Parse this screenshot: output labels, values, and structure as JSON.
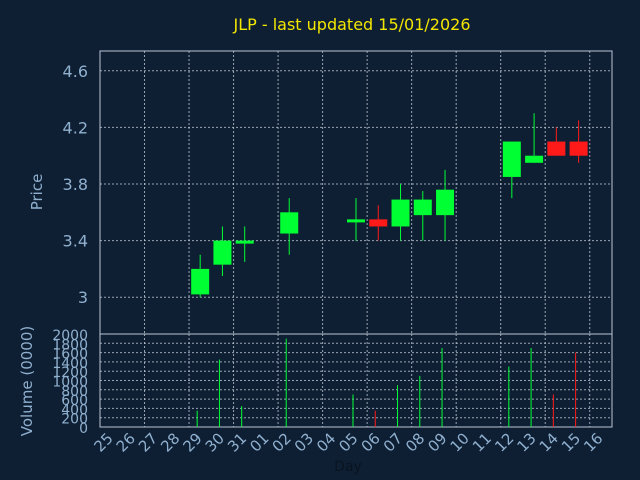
{
  "chart_data": {
    "type": "candlestick",
    "title": "JLP - last updated 15/01/2026",
    "xlabel": "Day",
    "price_panel": {
      "ylabel": "Price",
      "ylim": [
        2.74,
        4.74
      ],
      "yticks": [
        3,
        3.4,
        3.8,
        4.2,
        4.6
      ],
      "ytick_labels": [
        "3",
        "3.4",
        "3.8",
        "4.2",
        "4.6"
      ],
      "grid": true
    },
    "volume_panel": {
      "ylabel": "Volume (0000)",
      "ylim": [
        0,
        2000
      ],
      "yticks": [
        0,
        200,
        400,
        600,
        800,
        1000,
        1200,
        1400,
        1600,
        1800,
        2000
      ],
      "ytick_labels": [
        "0",
        "200",
        "400",
        "600",
        "800",
        "1000",
        "1200",
        "1400",
        "1600",
        "1800",
        "2000"
      ],
      "grid": true
    },
    "x_tick_labels": [
      "25",
      "26",
      "27",
      "28",
      "29",
      "30",
      "31",
      "01",
      "02",
      "03",
      "04",
      "05",
      "06",
      "07",
      "08",
      "09",
      "10",
      "11",
      "12",
      "13",
      "14",
      "15",
      "16"
    ],
    "candles": [
      {
        "day": "29",
        "open": 3.02,
        "high": 3.3,
        "low": 3.0,
        "close": 3.2,
        "volume": 350
      },
      {
        "day": "30",
        "open": 3.23,
        "high": 3.5,
        "low": 3.15,
        "close": 3.4,
        "volume": 1450
      },
      {
        "day": "31",
        "open": 3.39,
        "high": 3.5,
        "low": 3.25,
        "close": 3.4,
        "volume": 450
      },
      {
        "day": "02",
        "open": 3.45,
        "high": 3.7,
        "low": 3.3,
        "close": 3.6,
        "volume": 1900
      },
      {
        "day": "05",
        "open": 3.53,
        "high": 3.7,
        "low": 3.4,
        "close": 3.55,
        "volume": 700
      },
      {
        "day": "06",
        "open": 3.55,
        "high": 3.65,
        "low": 3.4,
        "close": 3.5,
        "volume": 350
      },
      {
        "day": "07",
        "open": 3.5,
        "high": 3.8,
        "low": 3.4,
        "close": 3.69,
        "volume": 900
      },
      {
        "day": "08",
        "open": 3.58,
        "high": 3.75,
        "low": 3.4,
        "close": 3.69,
        "volume": 1100
      },
      {
        "day": "09",
        "open": 3.58,
        "high": 3.9,
        "low": 3.4,
        "close": 3.76,
        "volume": 1700
      },
      {
        "day": "12",
        "open": 3.85,
        "high": 4.1,
        "low": 3.7,
        "close": 4.1,
        "volume": 1300
      },
      {
        "day": "13",
        "open": 3.95,
        "high": 4.3,
        "low": 3.95,
        "close": 4.0,
        "volume": 1700
      },
      {
        "day": "14",
        "open": 4.1,
        "high": 4.2,
        "low": 4.0,
        "close": 4.0,
        "volume": 700
      },
      {
        "day": "15",
        "open": 4.1,
        "high": 4.25,
        "low": 3.95,
        "close": 4.0,
        "volume": 1600
      }
    ],
    "colors": {
      "background": "#0f1f33",
      "plot_background": "#0f1f33",
      "frame": "#b9c6d4",
      "grid": "#c8d2dc",
      "up": "#00ff33",
      "down": "#ff1a1a",
      "title": "#f2e600",
      "axis_text": "#8fb0cf",
      "day_label": "#0a1320"
    }
  }
}
